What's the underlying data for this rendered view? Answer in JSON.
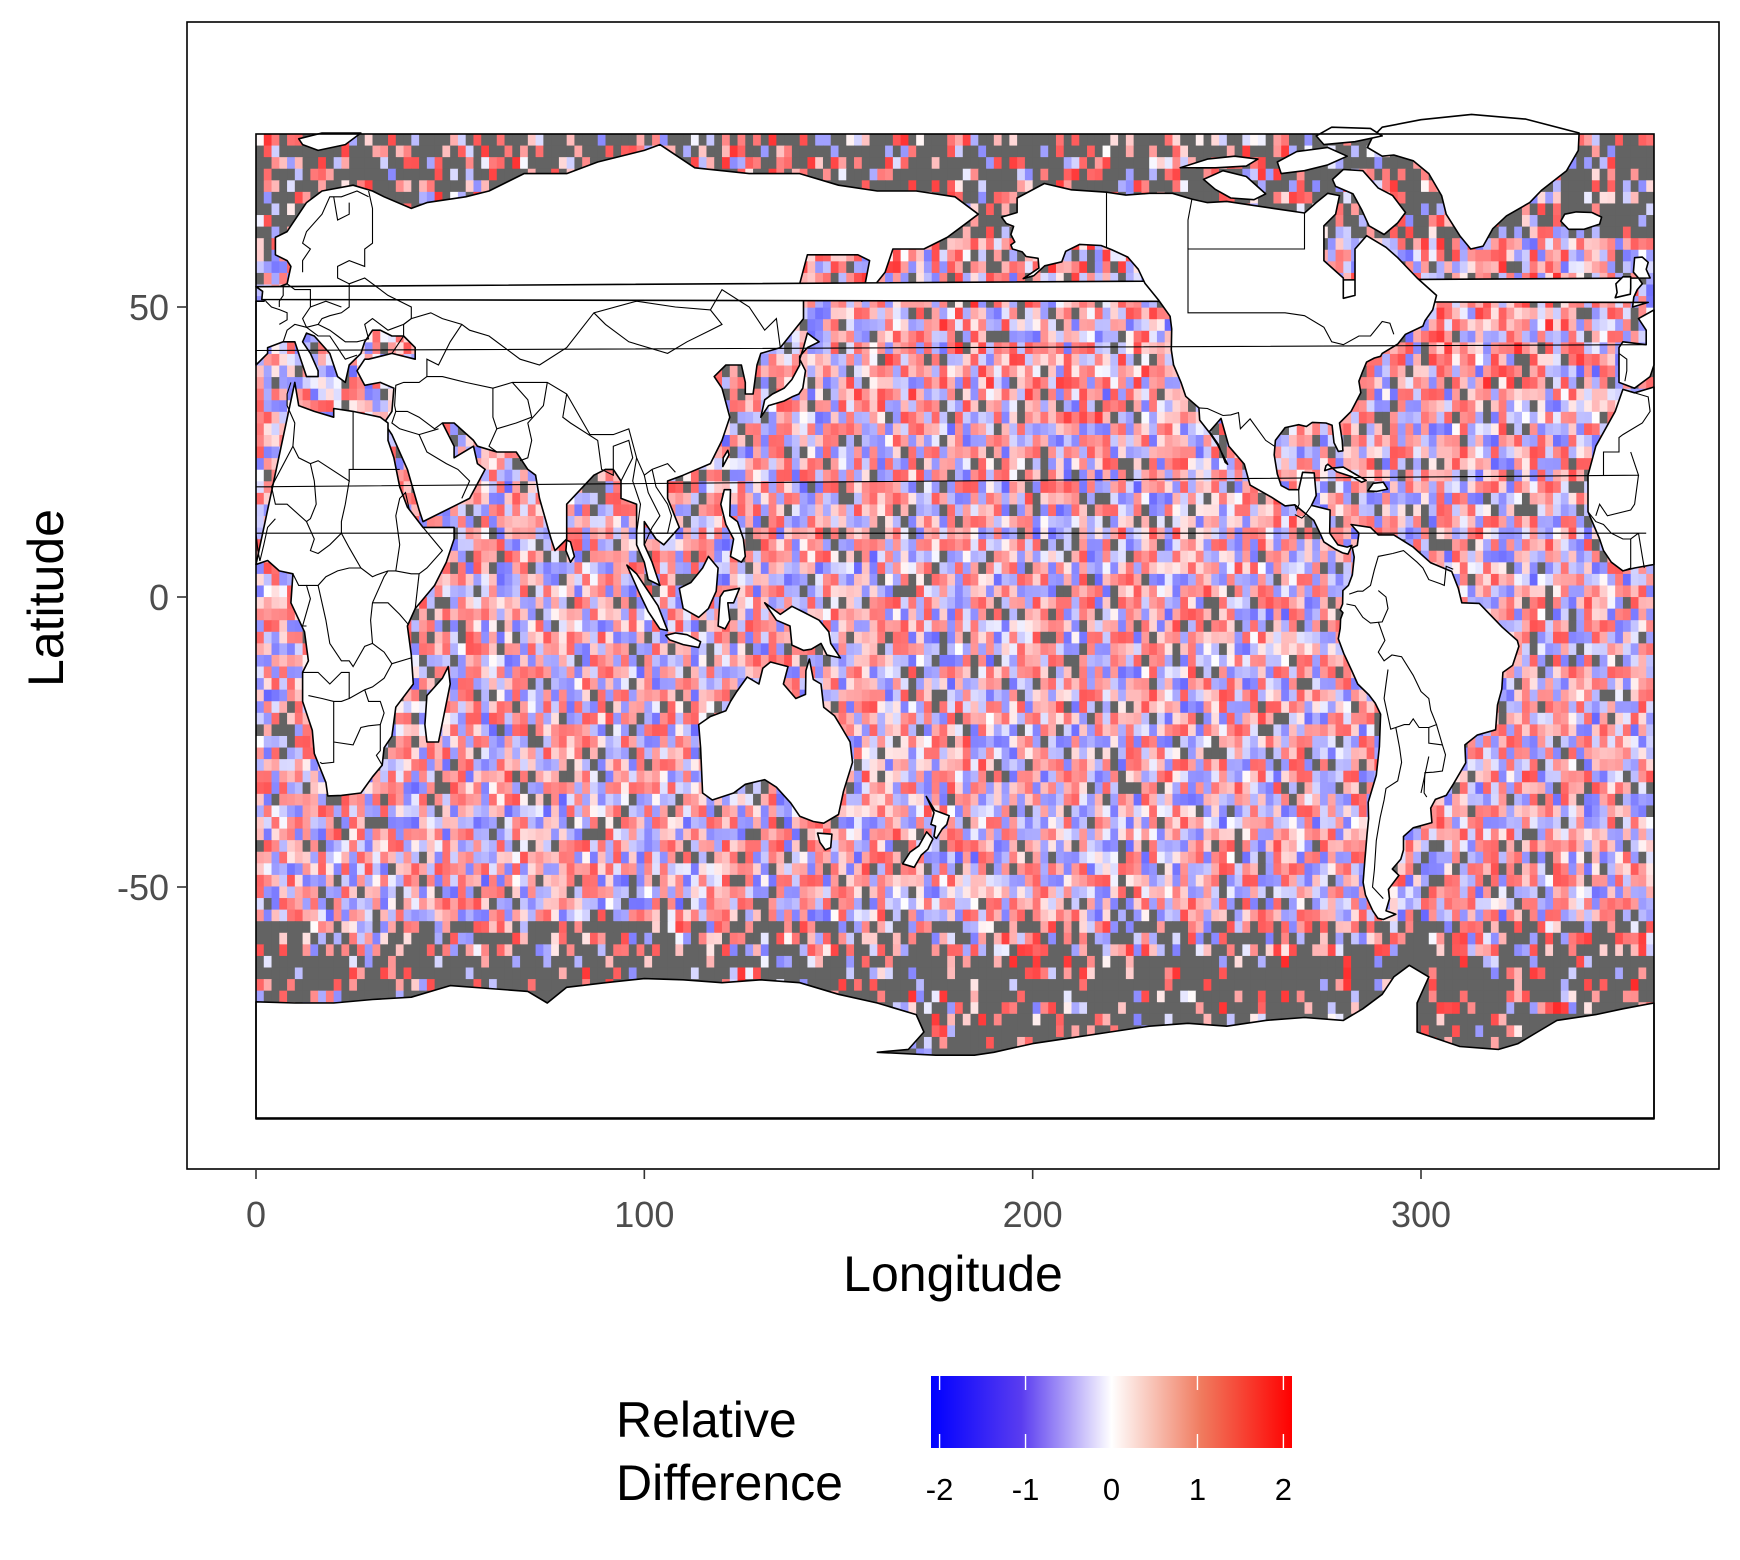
{
  "map": {
    "x_axis": {
      "title": "Longitude",
      "ticks": [
        {
          "value": 0,
          "label": "0"
        },
        {
          "value": 100,
          "label": "100"
        },
        {
          "value": 200,
          "label": "200"
        },
        {
          "value": 300,
          "label": "300"
        }
      ],
      "range": [
        -18,
        377
      ]
    },
    "y_axis": {
      "title": "Latitude",
      "ticks": [
        {
          "value": 50,
          "label": "50"
        },
        {
          "value": 0,
          "label": "0"
        },
        {
          "value": -50,
          "label": "-50"
        }
      ],
      "range": [
        -99,
        99
      ]
    },
    "projection": "equirectangular, longitude 0-360",
    "data_extent": {
      "lon": [
        0,
        360
      ],
      "lat": [
        -90,
        80
      ]
    },
    "colors": {
      "negative": "#0000ff",
      "zero": "#ffffff",
      "positive": "#ff0000",
      "no_data": "#636363",
      "land": "#ffffff",
      "outline": "#000000"
    }
  },
  "legend": {
    "title_line1": "Relative",
    "title_line2": "Difference",
    "position": "bottom",
    "range": [
      -2.1,
      2.1
    ],
    "ticks": [
      {
        "value": -2,
        "label": "-2"
      },
      {
        "value": -1,
        "label": "-1"
      },
      {
        "value": 0,
        "label": "0"
      },
      {
        "value": 1,
        "label": "1"
      },
      {
        "value": 2,
        "label": "2"
      }
    ]
  }
}
